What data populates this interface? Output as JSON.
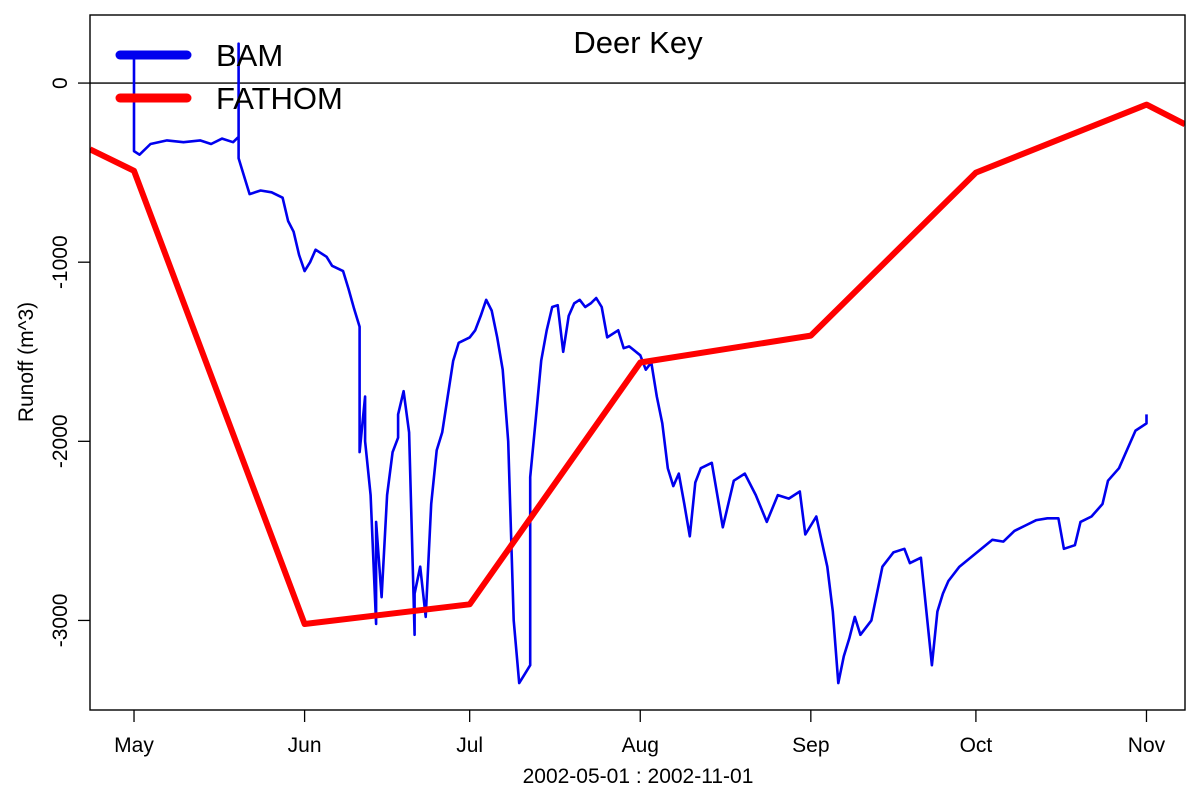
{
  "chart_data": {
    "type": "line",
    "title": "Deer Key",
    "xlabel": "2002-05-01 : 2002-11-01",
    "ylabel": "Runoff (m^3)",
    "xlim": [
      "2002-04-23",
      "2002-11-08"
    ],
    "ylim": [
      -3500,
      380
    ],
    "x_ticks": [
      {
        "date": "2002-05-01",
        "label": "May"
      },
      {
        "date": "2002-06-01",
        "label": "Jun"
      },
      {
        "date": "2002-07-01",
        "label": "Jul"
      },
      {
        "date": "2002-08-01",
        "label": "Aug"
      },
      {
        "date": "2002-09-01",
        "label": "Sep"
      },
      {
        "date": "2002-10-01",
        "label": "Oct"
      },
      {
        "date": "2002-11-01",
        "label": "Nov"
      }
    ],
    "y_ticks": [
      {
        "value": 0,
        "label": "0"
      },
      {
        "value": -1000,
        "label": "-1000"
      },
      {
        "value": -2000,
        "label": "-2000"
      },
      {
        "value": -3000,
        "label": "-3000"
      }
    ],
    "reference_line": 0,
    "grid": false,
    "legend_position": "top-left",
    "series": [
      {
        "name": "BAM",
        "color": "#0000ee",
        "points": [
          [
            "2002-05-01",
            180
          ],
          [
            "2002-05-01",
            -380
          ],
          [
            "2002-05-02",
            -400
          ],
          [
            "2002-05-04",
            -340
          ],
          [
            "2002-05-07",
            -320
          ],
          [
            "2002-05-10",
            -330
          ],
          [
            "2002-05-13",
            -320
          ],
          [
            "2002-05-15",
            -340
          ],
          [
            "2002-05-17",
            -310
          ],
          [
            "2002-05-19",
            -330
          ],
          [
            "2002-05-20",
            -300
          ],
          [
            "2002-05-20",
            220
          ],
          [
            "2002-05-20",
            -420
          ],
          [
            "2002-05-21",
            -520
          ],
          [
            "2002-05-22",
            -620
          ],
          [
            "2002-05-24",
            -600
          ],
          [
            "2002-05-26",
            -610
          ],
          [
            "2002-05-28",
            -640
          ],
          [
            "2002-05-29",
            -770
          ],
          [
            "2002-05-30",
            -830
          ],
          [
            "2002-05-31",
            -960
          ],
          [
            "2002-06-01",
            -1050
          ],
          [
            "2002-06-02",
            -1000
          ],
          [
            "2002-06-03",
            -930
          ],
          [
            "2002-06-05",
            -970
          ],
          [
            "2002-06-06",
            -1020
          ],
          [
            "2002-06-08",
            -1050
          ],
          [
            "2002-06-09",
            -1150
          ],
          [
            "2002-06-10",
            -1260
          ],
          [
            "2002-06-11",
            -1360
          ],
          [
            "2002-06-11",
            -2060
          ],
          [
            "2002-06-12",
            -1750
          ],
          [
            "2002-06-12",
            -2000
          ],
          [
            "2002-06-13",
            -2300
          ],
          [
            "2002-06-14",
            -3020
          ],
          [
            "2002-06-14",
            -2450
          ],
          [
            "2002-06-15",
            -2870
          ],
          [
            "2002-06-16",
            -2300
          ],
          [
            "2002-06-17",
            -2060
          ],
          [
            "2002-06-18",
            -1980
          ],
          [
            "2002-06-18",
            -1850
          ],
          [
            "2002-06-19",
            -1720
          ],
          [
            "2002-06-20",
            -1950
          ],
          [
            "2002-06-21",
            -3080
          ],
          [
            "2002-06-21",
            -2850
          ],
          [
            "2002-06-22",
            -2700
          ],
          [
            "2002-06-23",
            -2980
          ],
          [
            "2002-06-24",
            -2350
          ],
          [
            "2002-06-25",
            -2050
          ],
          [
            "2002-06-26",
            -1950
          ],
          [
            "2002-06-27",
            -1750
          ],
          [
            "2002-06-28",
            -1550
          ],
          [
            "2002-06-29",
            -1450
          ],
          [
            "2002-07-01",
            -1420
          ],
          [
            "2002-07-02",
            -1380
          ],
          [
            "2002-07-03",
            -1300
          ],
          [
            "2002-07-04",
            -1210
          ],
          [
            "2002-07-05",
            -1270
          ],
          [
            "2002-07-06",
            -1420
          ],
          [
            "2002-07-07",
            -1600
          ],
          [
            "2002-07-08",
            -2000
          ],
          [
            "2002-07-09",
            -3000
          ],
          [
            "2002-07-10",
            -3350
          ],
          [
            "2002-07-11",
            -3300
          ],
          [
            "2002-07-12",
            -3250
          ],
          [
            "2002-07-12",
            -2200
          ],
          [
            "2002-07-13",
            -1880
          ],
          [
            "2002-07-14",
            -1550
          ],
          [
            "2002-07-15",
            -1380
          ],
          [
            "2002-07-16",
            -1250
          ],
          [
            "2002-07-17",
            -1240
          ],
          [
            "2002-07-18",
            -1500
          ],
          [
            "2002-07-19",
            -1300
          ],
          [
            "2002-07-20",
            -1230
          ],
          [
            "2002-07-21",
            -1210
          ],
          [
            "2002-07-22",
            -1250
          ],
          [
            "2002-07-23",
            -1230
          ],
          [
            "2002-07-24",
            -1200
          ],
          [
            "2002-07-25",
            -1250
          ],
          [
            "2002-07-26",
            -1420
          ],
          [
            "2002-07-28",
            -1380
          ],
          [
            "2002-07-29",
            -1480
          ],
          [
            "2002-07-30",
            -1470
          ],
          [
            "2002-08-01",
            -1520
          ],
          [
            "2002-08-02",
            -1600
          ],
          [
            "2002-08-03",
            -1560
          ],
          [
            "2002-08-04",
            -1750
          ],
          [
            "2002-08-05",
            -1900
          ],
          [
            "2002-08-06",
            -2150
          ],
          [
            "2002-08-07",
            -2250
          ],
          [
            "2002-08-08",
            -2180
          ],
          [
            "2002-08-09",
            -2350
          ],
          [
            "2002-08-10",
            -2530
          ],
          [
            "2002-08-11",
            -2230
          ],
          [
            "2002-08-12",
            -2150
          ],
          [
            "2002-08-14",
            -2120
          ],
          [
            "2002-08-16",
            -2480
          ],
          [
            "2002-08-18",
            -2220
          ],
          [
            "2002-08-20",
            -2180
          ],
          [
            "2002-08-22",
            -2300
          ],
          [
            "2002-08-24",
            -2450
          ],
          [
            "2002-08-26",
            -2300
          ],
          [
            "2002-08-28",
            -2320
          ],
          [
            "2002-08-30",
            -2280
          ],
          [
            "2002-08-31",
            -2520
          ],
          [
            "2002-09-02",
            -2420
          ],
          [
            "2002-09-03",
            -2560
          ],
          [
            "2002-09-04",
            -2700
          ],
          [
            "2002-09-05",
            -2950
          ],
          [
            "2002-09-06",
            -3350
          ],
          [
            "2002-09-07",
            -3200
          ],
          [
            "2002-09-08",
            -3100
          ],
          [
            "2002-09-09",
            -2980
          ],
          [
            "2002-09-10",
            -3080
          ],
          [
            "2002-09-12",
            -3000
          ],
          [
            "2002-09-13",
            -2850
          ],
          [
            "2002-09-14",
            -2700
          ],
          [
            "2002-09-16",
            -2620
          ],
          [
            "2002-09-18",
            -2600
          ],
          [
            "2002-09-19",
            -2680
          ],
          [
            "2002-09-21",
            -2650
          ],
          [
            "2002-09-22",
            -2950
          ],
          [
            "2002-09-23",
            -3250
          ],
          [
            "2002-09-24",
            -2950
          ],
          [
            "2002-09-25",
            -2850
          ],
          [
            "2002-09-26",
            -2780
          ],
          [
            "2002-09-28",
            -2700
          ],
          [
            "2002-09-30",
            -2650
          ],
          [
            "2002-10-02",
            -2600
          ],
          [
            "2002-10-04",
            -2550
          ],
          [
            "2002-10-06",
            -2560
          ],
          [
            "2002-10-08",
            -2500
          ],
          [
            "2002-10-10",
            -2470
          ],
          [
            "2002-10-12",
            -2440
          ],
          [
            "2002-10-14",
            -2430
          ],
          [
            "2002-10-16",
            -2430
          ],
          [
            "2002-10-17",
            -2600
          ],
          [
            "2002-10-19",
            -2580
          ],
          [
            "2002-10-20",
            -2450
          ],
          [
            "2002-10-22",
            -2420
          ],
          [
            "2002-10-24",
            -2350
          ],
          [
            "2002-10-25",
            -2220
          ],
          [
            "2002-10-27",
            -2150
          ],
          [
            "2002-10-28",
            -2080
          ],
          [
            "2002-10-30",
            -1940
          ],
          [
            "2002-11-01",
            -1900
          ],
          [
            "2002-11-01",
            -1850
          ]
        ]
      },
      {
        "name": "FATHOM",
        "color": "#ff0000",
        "points": [
          [
            "2002-04-23",
            -370
          ],
          [
            "2002-05-01",
            -490
          ],
          [
            "2002-06-01",
            -3020
          ],
          [
            "2002-07-01",
            -2910
          ],
          [
            "2002-08-01",
            -1560
          ],
          [
            "2002-09-01",
            -1410
          ],
          [
            "2002-10-01",
            -500
          ],
          [
            "2002-11-01",
            -120
          ],
          [
            "2002-11-08",
            -230
          ]
        ]
      }
    ]
  }
}
